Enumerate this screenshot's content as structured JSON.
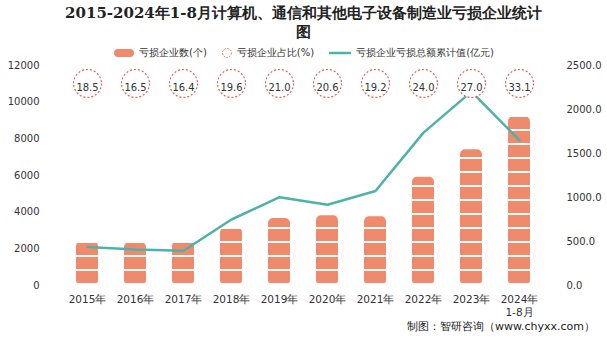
{
  "chart_data": {
    "type": "bar",
    "title": "2015-2024年1-8月计算机、通信和其他电子设备制造业亏损企业统计图",
    "caption": "制图：智研咨询（www.chyxx.com）",
    "categories": [
      "2015年",
      "2016年",
      "2017年",
      "2018年",
      "2019年",
      "2020年",
      "2021年",
      "2022年",
      "2023年",
      "2024年\n1-8月"
    ],
    "series": [
      {
        "name": "亏损企业数(个)",
        "type": "bar",
        "color": "#f08a6c",
        "values": [
          2400,
          2350,
          2400,
          3150,
          3650,
          3800,
          3750,
          5900,
          7400,
          9200
        ]
      },
      {
        "name": "亏损企业占比(%)",
        "type": "scatter",
        "marker": "circle",
        "color": "#e0604c",
        "data_labels": true,
        "values": [
          18.5,
          16.5,
          16.4,
          19.6,
          21.0,
          20.6,
          19.2,
          24.0,
          27.0,
          33.1
        ],
        "value_labels": [
          "18.5",
          "16.5",
          "16.4",
          "19.6",
          "21.0",
          "20.6",
          "19.2",
          "24.0",
          "27.0",
          "33.1"
        ]
      },
      {
        "name": "亏损企业亏损总额累计值(亿元)",
        "type": "line",
        "color": "#4db3a8",
        "axis": "y2",
        "values": [
          438,
          410,
          395,
          750,
          1003,
          918,
          1073,
          1737,
          2203,
          1650
        ]
      }
    ],
    "ylim": [
      0,
      12000
    ],
    "yticks": [
      0,
      2000,
      4000,
      6000,
      8000,
      10000,
      12000
    ],
    "y2lim": [
      0,
      2500
    ],
    "y2ticks": [
      {
        "value": 0,
        "label": "0.0"
      },
      {
        "value": 500,
        "label": "500.0"
      },
      {
        "value": 1000,
        "label": "1000.0"
      },
      {
        "value": 1500,
        "label": "1500.0"
      },
      {
        "value": 2000,
        "label": "2000.0"
      },
      {
        "value": 2500,
        "label": "2500.0"
      }
    ],
    "grid": false,
    "legend": "top"
  }
}
